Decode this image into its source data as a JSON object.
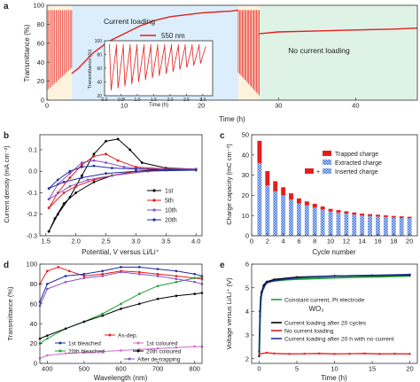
{
  "panel_labels": {
    "a": "a",
    "b": "b",
    "c": "c",
    "d": "d",
    "e": "e"
  },
  "colors": {
    "red": "#e41e1e",
    "region_a": "#fdf3dd",
    "region_b": "#dceefb",
    "region_c": "#dff2e6",
    "black": "#000000",
    "blue": "#1f2f9c",
    "purple": "#8a4fc7",
    "green": "#1f9d3a",
    "pink": "#d06ad0"
  },
  "chart_data": [
    {
      "id": "a",
      "type": "line",
      "xlabel": "Time (h)",
      "ylabel": "Transmittance (%)",
      "xlim": [
        0,
        48
      ],
      "ylim": [
        0,
        100
      ],
      "xticks": [
        "0",
        "10",
        "20",
        "30",
        "40"
      ],
      "yticks": [
        "0",
        "20",
        "40",
        "60",
        "80",
        "100"
      ],
      "annotations": {
        "current_loading": "Current loading",
        "no_current_loading": "No current loading",
        "legend_label": "550 nm"
      },
      "regions": [
        {
          "from": 0,
          "to": 3.2
        },
        {
          "from": 3.2,
          "to": 24.8
        },
        {
          "from": 24.8,
          "to": 27.5
        },
        {
          "from": 27.5,
          "to": 48
        }
      ],
      "segments": [
        {
          "x": [
            3.2,
            4,
            6,
            8,
            9,
            10,
            12,
            14,
            16,
            18,
            20,
            22,
            24,
            24.8
          ],
          "y": [
            28,
            33,
            50,
            62,
            66,
            70,
            78,
            84,
            88,
            90,
            92,
            93,
            94,
            95
          ]
        },
        {
          "x": [
            27.5,
            30,
            35,
            40,
            45,
            48
          ],
          "y": [
            70,
            72,
            73,
            74,
            75,
            76
          ]
        }
      ],
      "oscillation_zones": [
        {
          "from": 0,
          "to": 3.2,
          "high": 95,
          "low": 10
        },
        {
          "from": 24.8,
          "to": 27.5,
          "high": 95,
          "low": 5
        }
      ],
      "inset": {
        "xlabel": "Time (h)",
        "ylabel": "Transmittance (%)",
        "xlim": [
          0,
          3.3
        ],
        "ylim": [
          20,
          100
        ],
        "xticks": [
          "0.0",
          "0.5",
          "1.0",
          "1.5",
          "2.0",
          "2.5",
          "3.0"
        ],
        "yticks": [
          "20",
          "40",
          "60",
          "80",
          "100"
        ]
      }
    },
    {
      "id": "b",
      "type": "line",
      "xlabel": "Potential, V versus Li/Li⁺",
      "ylabel": "Current density (mA cm⁻²)",
      "xlim": [
        1.4,
        4.1
      ],
      "ylim": [
        -0.3,
        0.17
      ],
      "xticks": [
        "1.5",
        "2.0",
        "2.5",
        "3.0",
        "3.5",
        "4.0"
      ],
      "yticks": [
        "-0.3",
        "-0.2",
        "-0.1",
        "0.0",
        "0.1"
      ],
      "legend": [
        "1st",
        "5th",
        "10th",
        "20th"
      ],
      "series": [
        {
          "name": "1st",
          "x": [
            1.55,
            1.7,
            1.9,
            2.1,
            2.3,
            2.5,
            2.7,
            2.9,
            3.1,
            3.5,
            4.0,
            3.5,
            3.0,
            2.6,
            2.3,
            2.0,
            1.8,
            1.65,
            1.55
          ],
          "y": [
            -0.28,
            -0.2,
            -0.12,
            -0.02,
            0.08,
            0.14,
            0.15,
            0.1,
            0.04,
            0.015,
            0.01,
            0.01,
            0.0,
            -0.02,
            -0.05,
            -0.1,
            -0.15,
            -0.22,
            -0.28
          ]
        },
        {
          "name": "5th",
          "x": [
            1.55,
            1.7,
            1.9,
            2.1,
            2.3,
            2.5,
            2.7,
            3.0,
            3.5,
            4.0,
            3.5,
            3.0,
            2.6,
            2.3,
            2.0,
            1.8,
            1.55
          ],
          "y": [
            -0.17,
            -0.1,
            -0.03,
            0.03,
            0.07,
            0.08,
            0.05,
            0.02,
            0.01,
            0.01,
            0.005,
            0.0,
            -0.02,
            -0.04,
            -0.07,
            -0.1,
            -0.17
          ]
        },
        {
          "name": "10th",
          "x": [
            1.55,
            1.7,
            1.9,
            2.1,
            2.3,
            2.5,
            2.8,
            3.2,
            4.0,
            3.2,
            2.6,
            2.2,
            1.9,
            1.55
          ],
          "y": [
            -0.13,
            -0.06,
            -0.01,
            0.04,
            0.05,
            0.04,
            0.02,
            0.01,
            0.01,
            0.0,
            -0.02,
            -0.04,
            -0.07,
            -0.13
          ]
        },
        {
          "name": "20th",
          "x": [
            1.55,
            1.7,
            1.9,
            2.1,
            2.3,
            2.6,
            3.0,
            4.0,
            3.0,
            2.5,
            2.1,
            1.8,
            1.55
          ],
          "y": [
            -0.08,
            -0.04,
            0.0,
            0.02,
            0.025,
            0.015,
            0.01,
            0.005,
            0.0,
            -0.01,
            -0.03,
            -0.05,
            -0.08
          ]
        }
      ]
    },
    {
      "id": "c",
      "type": "bar",
      "xlabel": "Cycle number",
      "ylabel": "Charge capacity (mC cm⁻²)",
      "xlim": [
        0,
        21
      ],
      "ylim": [
        0,
        50
      ],
      "xticks": [
        "0",
        "2",
        "4",
        "6",
        "8",
        "10",
        "12",
        "14",
        "16",
        "18",
        "20"
      ],
      "yticks": [
        "0",
        "10",
        "20",
        "30",
        "40",
        "50"
      ],
      "legend": [
        "Trapped charge",
        "Extracted charge",
        "Inserted charge"
      ],
      "categories": [
        1,
        2,
        3,
        4,
        5,
        6,
        7,
        8,
        9,
        10,
        11,
        12,
        13,
        14,
        15,
        16,
        17,
        18,
        19,
        20
      ],
      "series": [
        {
          "name": "Extracted charge",
          "values": [
            36,
            25,
            22,
            20,
            18,
            16,
            15,
            14,
            13,
            12,
            11.5,
            11,
            10.5,
            10,
            9.8,
            9.5,
            9.3,
            9,
            8.8,
            8.7
          ]
        },
        {
          "name": "Trapped charge",
          "values": [
            11,
            7,
            5,
            4,
            3,
            2.5,
            2,
            1.8,
            1.5,
            1.3,
            1.2,
            1.1,
            1,
            1,
            0.9,
            0.9,
            0.8,
            0.8,
            0.8,
            0.7
          ]
        }
      ]
    },
    {
      "id": "d",
      "type": "line",
      "xlabel": "Wavelength (nm)",
      "ylabel": "Transmittance (%)",
      "xlim": [
        380,
        820
      ],
      "ylim": [
        0,
        100
      ],
      "xticks": [
        "400",
        "500",
        "600",
        "700",
        "800"
      ],
      "yticks": [
        "0",
        "20",
        "40",
        "60",
        "80",
        "100"
      ],
      "legend": [
        "As-dep.",
        "1st bleached",
        "1st coloured",
        "20th bleached",
        "20th coloured",
        "After de-trapping"
      ],
      "series": [
        {
          "name": "As-dep.",
          "x": [
            380,
            400,
            430,
            460,
            500,
            550,
            600,
            650,
            700,
            750,
            800,
            820
          ],
          "y": [
            80,
            93,
            97,
            93,
            88,
            90,
            93,
            92,
            90,
            88,
            86,
            85
          ]
        },
        {
          "name": "1st bleached",
          "x": [
            380,
            400,
            450,
            500,
            550,
            600,
            650,
            700,
            750,
            800,
            820
          ],
          "y": [
            62,
            80,
            88,
            90,
            93,
            97,
            97,
            95,
            93,
            90,
            88
          ]
        },
        {
          "name": "1st coloured",
          "x": [
            380,
            400,
            450,
            500,
            550,
            600,
            650,
            700,
            750,
            800,
            820
          ],
          "y": [
            5,
            8,
            10,
            11,
            12,
            13,
            14,
            15,
            16,
            17,
            17
          ]
        },
        {
          "name": "20th bleached",
          "x": [
            380,
            400,
            450,
            500,
            550,
            600,
            650,
            700,
            750,
            800,
            820
          ],
          "y": [
            20,
            25,
            35,
            42,
            50,
            60,
            70,
            78,
            82,
            86,
            87
          ]
        },
        {
          "name": "20th coloured",
          "x": [
            380,
            400,
            450,
            500,
            550,
            600,
            650,
            700,
            750,
            800,
            820
          ],
          "y": [
            25,
            28,
            35,
            42,
            48,
            55,
            60,
            65,
            68,
            70,
            71
          ]
        },
        {
          "name": "After de-trapping",
          "x": [
            380,
            400,
            450,
            500,
            550,
            600,
            650,
            700,
            750,
            800,
            820
          ],
          "y": [
            58,
            75,
            82,
            86,
            88,
            92,
            90,
            88,
            85,
            82,
            80
          ]
        }
      ]
    },
    {
      "id": "e",
      "type": "line",
      "xlabel": "Time (h)",
      "ylabel": "Voltage versus Li/Li⁺ (V)",
      "title": "WO₃",
      "xlim": [
        -1,
        21
      ],
      "ylim": [
        1.8,
        6
      ],
      "xticks": [
        "0",
        "5",
        "10",
        "15",
        "20"
      ],
      "yticks": [
        "2",
        "3",
        "4",
        "5",
        "6"
      ],
      "legend": [
        "Constant current, Pt electrode",
        "Current loading after 20 cycles",
        "No current loading",
        "Current loading after 20 h with no current"
      ],
      "series": [
        {
          "name": "Constant current, Pt electrode",
          "x": [
            0,
            0.2,
            0.6,
            1,
            2,
            4,
            8,
            12,
            16,
            20
          ],
          "y": [
            2.3,
            4.6,
            5.1,
            5.25,
            5.3,
            5.35,
            5.4,
            5.45,
            5.47,
            5.5
          ]
        },
        {
          "name": "Current loading after 20 cycles",
          "x": [
            0,
            0.1,
            0.3,
            0.6,
            1,
            2,
            5,
            10,
            15,
            20
          ],
          "y": [
            2.1,
            4.0,
            4.8,
            5.1,
            5.25,
            5.35,
            5.45,
            5.5,
            5.52,
            5.54
          ]
        },
        {
          "name": "No current loading",
          "x": [
            0,
            1,
            2,
            4,
            6,
            8,
            10,
            12,
            14,
            16,
            18,
            20
          ],
          "y": [
            2.2,
            2.25,
            2.22,
            2.2,
            2.21,
            2.22,
            2.2,
            2.21,
            2.22,
            2.2,
            2.21,
            2.2
          ]
        },
        {
          "name": "Current loading after 20 h with no current",
          "x": [
            0,
            0.1,
            0.3,
            0.6,
            1,
            2,
            5,
            10,
            15,
            20
          ],
          "y": [
            2.3,
            3.8,
            4.7,
            5.0,
            5.2,
            5.3,
            5.42,
            5.5,
            5.53,
            5.56
          ]
        }
      ]
    }
  ]
}
